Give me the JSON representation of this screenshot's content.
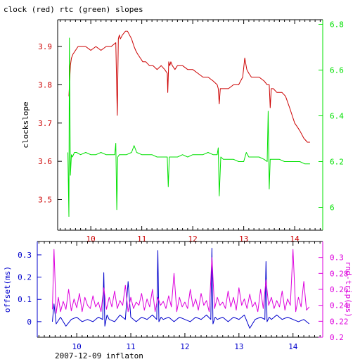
{
  "title": "clock (red) rtc (green) slopes",
  "footer": "2007-12-09 inflaton",
  "colors": {
    "clock": "#cc0000",
    "rtc": "#00e000",
    "offset": "#0000cc",
    "roundtrip": "#dd00dd",
    "axis": "#000000"
  },
  "chart_data": [
    {
      "type": "line",
      "title": "clock (red) rtc (green) slopes",
      "ylabel": "clockslope",
      "ylabel_right": "",
      "xlim": [
        9.35,
        14.55
      ],
      "ylim": [
        3.42,
        3.97
      ],
      "y2lim": [
        5.9,
        6.82
      ],
      "xticks": [
        "10",
        "11",
        "12",
        "13",
        "14"
      ],
      "yticks": [
        "3.5",
        "3.6",
        "3.7",
        "3.8",
        "3.9"
      ],
      "y2ticks": [
        "6",
        "6.2",
        "6.4",
        "6.6",
        "6.8"
      ],
      "x_tick_color": "#cc0000",
      "series": [
        {
          "axis": "left",
          "color": "#cc0000",
          "x": [
            9.57,
            9.6,
            9.62,
            9.65,
            9.7,
            9.75,
            9.82,
            9.9,
            10.0,
            10.1,
            10.2,
            10.3,
            10.4,
            10.49,
            10.52,
            10.54,
            10.56,
            10.58,
            10.62,
            10.68,
            10.72,
            10.76,
            10.8,
            10.85,
            10.88,
            10.92,
            10.97,
            11.02,
            11.08,
            11.15,
            11.22,
            11.3,
            11.38,
            11.45,
            11.5,
            11.51,
            11.53,
            11.55,
            11.57,
            11.6,
            11.65,
            11.7,
            11.8,
            11.9,
            12.0,
            12.1,
            12.2,
            12.3,
            12.4,
            12.48,
            12.5,
            12.52,
            12.54,
            12.57,
            12.6,
            12.7,
            12.8,
            12.9,
            12.98,
            13.02,
            13.06,
            13.1,
            13.15,
            13.2,
            13.3,
            13.4,
            13.46,
            13.5,
            13.52,
            13.54,
            13.58,
            13.65,
            13.75,
            13.82,
            13.9,
            13.95,
            14.0,
            14.05,
            14.1,
            14.18,
            14.25,
            14.3
          ],
          "y": [
            3.77,
            3.85,
            3.87,
            3.88,
            3.89,
            3.9,
            3.9,
            3.9,
            3.89,
            3.9,
            3.89,
            3.9,
            3.9,
            3.91,
            3.72,
            3.92,
            3.93,
            3.92,
            3.93,
            3.94,
            3.94,
            3.93,
            3.92,
            3.9,
            3.89,
            3.88,
            3.87,
            3.86,
            3.86,
            3.85,
            3.85,
            3.84,
            3.85,
            3.84,
            3.83,
            3.78,
            3.86,
            3.85,
            3.86,
            3.85,
            3.84,
            3.85,
            3.85,
            3.84,
            3.84,
            3.83,
            3.82,
            3.82,
            3.81,
            3.8,
            3.79,
            3.75,
            3.79,
            3.79,
            3.79,
            3.79,
            3.8,
            3.8,
            3.82,
            3.87,
            3.84,
            3.83,
            3.82,
            3.82,
            3.82,
            3.81,
            3.8,
            3.8,
            3.74,
            3.79,
            3.79,
            3.78,
            3.78,
            3.77,
            3.74,
            3.72,
            3.7,
            3.69,
            3.68,
            3.66,
            3.65,
            3.65
          ]
        },
        {
          "axis": "right",
          "color": "#00e000",
          "x": [
            9.55,
            9.57,
            9.58,
            9.6,
            9.62,
            9.64,
            9.68,
            9.72,
            9.8,
            9.9,
            10.0,
            10.1,
            10.2,
            10.3,
            10.4,
            10.47,
            10.49,
            10.51,
            10.53,
            10.56,
            10.6,
            10.7,
            10.8,
            10.85,
            10.9,
            11.0,
            11.1,
            11.2,
            11.3,
            11.4,
            11.5,
            11.52,
            11.54,
            11.56,
            11.6,
            11.7,
            11.8,
            11.9,
            12.0,
            12.1,
            12.2,
            12.3,
            12.4,
            12.48,
            12.5,
            12.52,
            12.55,
            12.6,
            12.7,
            12.8,
            12.9,
            13.0,
            13.05,
            13.1,
            13.2,
            13.3,
            13.4,
            13.46,
            13.48,
            13.5,
            13.52,
            13.55,
            13.6,
            13.7,
            13.8,
            13.9,
            14.0,
            14.1,
            14.2,
            14.3
          ],
          "y": [
            6.24,
            5.96,
            6.74,
            6.14,
            6.23,
            6.22,
            6.24,
            6.24,
            6.23,
            6.24,
            6.23,
            6.23,
            6.24,
            6.23,
            6.23,
            6.23,
            6.28,
            5.99,
            6.22,
            6.23,
            6.23,
            6.23,
            6.24,
            6.27,
            6.24,
            6.23,
            6.23,
            6.23,
            6.22,
            6.22,
            6.22,
            6.09,
            6.22,
            6.22,
            6.22,
            6.22,
            6.23,
            6.22,
            6.23,
            6.23,
            6.23,
            6.24,
            6.23,
            6.23,
            6.26,
            6.05,
            6.22,
            6.21,
            6.21,
            6.21,
            6.2,
            6.2,
            6.24,
            6.22,
            6.22,
            6.22,
            6.21,
            6.2,
            6.42,
            6.08,
            6.21,
            6.21,
            6.21,
            6.21,
            6.2,
            6.2,
            6.2,
            6.2,
            6.19,
            6.19
          ]
        }
      ]
    },
    {
      "type": "line",
      "title": "",
      "xlabel": "2007-12-09 inflaton",
      "ylabel": "offset(ms)",
      "ylabel_right": "rnd-trip(ms)",
      "xlim": [
        9.27,
        14.55
      ],
      "ylim": [
        -0.07,
        0.36
      ],
      "y2lim": [
        0.2,
        0.32
      ],
      "xticks": [
        "10",
        "11",
        "12",
        "13",
        "14"
      ],
      "yticks": [
        "0",
        "0.1",
        "0.2",
        "0.3"
      ],
      "y2ticks": [
        "0.2",
        "0.22",
        "0.24",
        "0.26",
        "0.28",
        "0.3"
      ],
      "x_tick_color": "#0000cc",
      "series": [
        {
          "axis": "left",
          "color": "#0000cc",
          "x": [
            9.55,
            9.58,
            9.62,
            9.7,
            9.8,
            9.9,
            10.0,
            10.1,
            10.2,
            10.3,
            10.4,
            10.48,
            10.5,
            10.52,
            10.56,
            10.6,
            10.7,
            10.8,
            10.9,
            10.95,
            11.0,
            11.1,
            11.2,
            11.3,
            11.4,
            11.48,
            11.5,
            11.52,
            11.56,
            11.6,
            11.7,
            11.8,
            11.9,
            12.0,
            12.1,
            12.2,
            12.3,
            12.4,
            12.48,
            12.5,
            12.52,
            12.56,
            12.6,
            12.7,
            12.8,
            12.9,
            13.0,
            13.1,
            13.2,
            13.3,
            13.4,
            13.48,
            13.5,
            13.52,
            13.56,
            13.6,
            13.7,
            13.8,
            13.9,
            14.0,
            14.1,
            14.2,
            14.3
          ],
          "y": [
            0.0,
            0.08,
            -0.01,
            0.02,
            -0.02,
            0.01,
            0.02,
            0.0,
            0.01,
            0.0,
            0.02,
            0.01,
            0.22,
            -0.02,
            0.03,
            0.01,
            0.0,
            0.03,
            0.01,
            0.18,
            0.02,
            0.0,
            0.02,
            0.01,
            0.03,
            0.01,
            0.32,
            0.0,
            0.02,
            0.01,
            0.02,
            0.0,
            0.02,
            0.01,
            0.0,
            0.02,
            0.01,
            0.03,
            0.01,
            0.33,
            -0.01,
            0.02,
            0.01,
            0.02,
            0.0,
            0.02,
            0.01,
            0.03,
            -0.03,
            0.01,
            0.02,
            0.01,
            0.27,
            0.0,
            0.02,
            0.01,
            0.03,
            0.01,
            0.02,
            0.01,
            0.0,
            0.01,
            -0.01
          ]
        },
        {
          "axis": "right",
          "color": "#dd00dd",
          "x": [
            9.55,
            9.58,
            9.62,
            9.66,
            9.7,
            9.75,
            9.8,
            9.85,
            9.9,
            9.95,
            10.0,
            10.05,
            10.1,
            10.15,
            10.2,
            10.25,
            10.3,
            10.35,
            10.4,
            10.45,
            10.5,
            10.55,
            10.6,
            10.65,
            10.7,
            10.75,
            10.8,
            10.85,
            10.9,
            10.95,
            11.0,
            11.05,
            11.1,
            11.15,
            11.2,
            11.25,
            11.3,
            11.35,
            11.4,
            11.45,
            11.5,
            11.55,
            11.6,
            11.65,
            11.7,
            11.75,
            11.8,
            11.85,
            11.9,
            11.95,
            12.0,
            12.05,
            12.1,
            12.15,
            12.2,
            12.25,
            12.3,
            12.35,
            12.4,
            12.45,
            12.5,
            12.55,
            12.6,
            12.65,
            12.7,
            12.75,
            12.8,
            12.85,
            12.9,
            12.95,
            13.0,
            13.05,
            13.1,
            13.15,
            13.2,
            13.25,
            13.3,
            13.35,
            13.4,
            13.45,
            13.5,
            13.55,
            13.6,
            13.65,
            13.7,
            13.75,
            13.8,
            13.85,
            13.9,
            13.95,
            14.0,
            14.05,
            14.1,
            14.15,
            14.2,
            14.25,
            14.3
          ],
          "y": [
            0.235,
            0.31,
            0.23,
            0.25,
            0.232,
            0.245,
            0.235,
            0.26,
            0.233,
            0.248,
            0.237,
            0.255,
            0.232,
            0.25,
            0.24,
            0.236,
            0.252,
            0.238,
            0.244,
            0.232,
            0.262,
            0.235,
            0.25,
            0.238,
            0.258,
            0.236,
            0.246,
            0.24,
            0.265,
            0.232,
            0.25,
            0.236,
            0.244,
            0.24,
            0.255,
            0.234,
            0.248,
            0.238,
            0.26,
            0.232,
            0.25,
            0.24,
            0.245,
            0.236,
            0.252,
            0.238,
            0.28,
            0.232,
            0.25,
            0.238,
            0.244,
            0.236,
            0.26,
            0.238,
            0.248,
            0.234,
            0.255,
            0.24,
            0.246,
            0.232,
            0.3,
            0.236,
            0.25,
            0.24,
            0.244,
            0.236,
            0.258,
            0.238,
            0.25,
            0.234,
            0.262,
            0.24,
            0.248,
            0.236,
            0.254,
            0.238,
            0.244,
            0.232,
            0.26,
            0.236,
            0.272,
            0.24,
            0.25,
            0.236,
            0.246,
            0.238,
            0.258,
            0.234,
            0.248,
            0.24,
            0.31,
            0.232,
            0.25,
            0.238,
            0.27,
            0.234,
            0.238
          ]
        }
      ]
    }
  ]
}
